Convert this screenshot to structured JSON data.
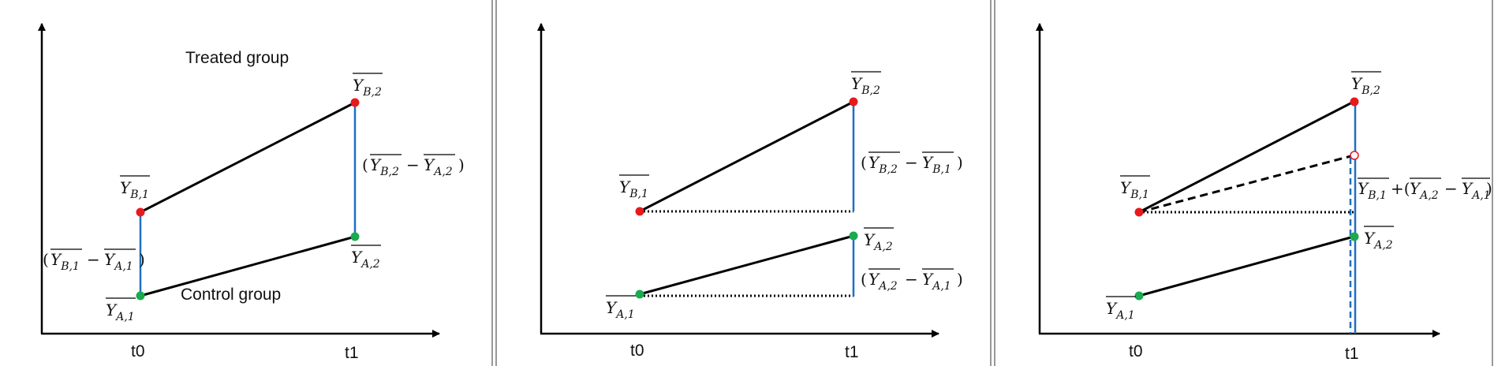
{
  "panel1": {
    "treated_label": "Treated group",
    "control_label": "Control group",
    "tick_t0": "t0",
    "tick_t1": "t1",
    "y_b1": {
      "base": "Y",
      "sub": "B,1"
    },
    "y_b2": {
      "base": "Y",
      "sub": "B,2"
    },
    "y_a1": {
      "base": "Y",
      "sub": "A,1"
    },
    "y_a2": {
      "base": "Y",
      "sub": "A,2"
    },
    "diff_t0": {
      "a": "B,1",
      "b": "A,1"
    },
    "diff_t1": {
      "a": "B,2",
      "b": "A,2"
    }
  },
  "panel2": {
    "tick_t0": "t0",
    "tick_t1": "t1",
    "y_b1": {
      "base": "Y",
      "sub": "B,1"
    },
    "y_b2": {
      "base": "Y",
      "sub": "B,2"
    },
    "y_a1": {
      "base": "Y",
      "sub": "A,1"
    },
    "y_a2": {
      "base": "Y",
      "sub": "A,2"
    },
    "diff_treated": {
      "a": "B,2",
      "b": "B,1"
    },
    "diff_control": {
      "a": "A,2",
      "b": "A,1"
    }
  },
  "panel3": {
    "tick_t0": "t0",
    "tick_t1": "t1",
    "y_b1": {
      "base": "Y",
      "sub": "B,1"
    },
    "y_b2": {
      "base": "Y",
      "sub": "B,2"
    },
    "y_a1": {
      "base": "Y",
      "sub": "A,1"
    },
    "y_a2": {
      "base": "Y",
      "sub": "A,2"
    },
    "counterfactual": {
      "first": "B,1",
      "a": "A,2",
      "b": "A,1"
    }
  },
  "colors": {
    "treated_point": "#e8191c",
    "control_point": "#1aaa4f",
    "difference_line": "#1f6fc1",
    "trend_line": "#000000",
    "panel_divider": "#555555"
  }
}
